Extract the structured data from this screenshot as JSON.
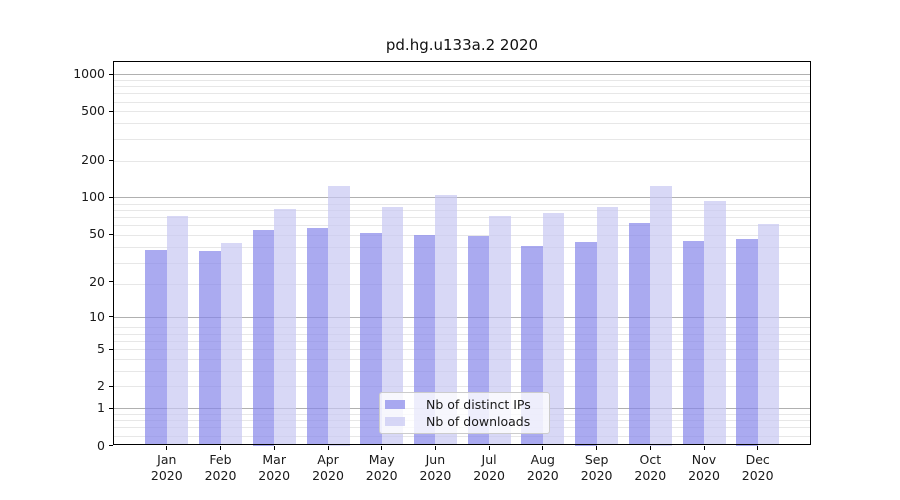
{
  "title": "pd.hg.u133a.2 2020",
  "chart_data": {
    "type": "bar",
    "title": "pd.hg.u133a.2 2020",
    "categories": [
      {
        "month": "Jan",
        "year": "2020"
      },
      {
        "month": "Feb",
        "year": "2020"
      },
      {
        "month": "Mar",
        "year": "2020"
      },
      {
        "month": "Apr",
        "year": "2020"
      },
      {
        "month": "May",
        "year": "2020"
      },
      {
        "month": "Jun",
        "year": "2020"
      },
      {
        "month": "Jul",
        "year": "2020"
      },
      {
        "month": "Aug",
        "year": "2020"
      },
      {
        "month": "Sep",
        "year": "2020"
      },
      {
        "month": "Oct",
        "year": "2020"
      },
      {
        "month": "Nov",
        "year": "2020"
      },
      {
        "month": "Dec",
        "year": "2020"
      }
    ],
    "series": [
      {
        "name": "Nb of distinct IPs",
        "color": "rgba(134,134,234,0.7)",
        "values": [
          37,
          36,
          54,
          56,
          51,
          49,
          48,
          40,
          43,
          62,
          44,
          46
        ]
      },
      {
        "name": "Nb of downloads",
        "color": "rgba(199,199,242,0.7)",
        "values": [
          70,
          42,
          81,
          125,
          84,
          105,
          70,
          74,
          84,
          125,
          93,
          61
        ]
      }
    ],
    "y_scale": "log1p",
    "ylim": [
      0,
      1275
    ],
    "y_ticks": [
      {
        "value": 1000,
        "label": "1000"
      },
      {
        "value": 500,
        "label": "500"
      },
      {
        "value": 200,
        "label": "200"
      },
      {
        "value": 100,
        "label": "100"
      },
      {
        "value": 50,
        "label": "50"
      },
      {
        "value": 20,
        "label": "20"
      },
      {
        "value": 10,
        "label": "10"
      },
      {
        "value": 5,
        "label": "5"
      },
      {
        "value": 2,
        "label": "2"
      },
      {
        "value": 1,
        "label": "1"
      },
      {
        "value": 0,
        "label": "0"
      }
    ],
    "y_major_gridlines": [
      1,
      10,
      100,
      1000
    ],
    "y_minor_gridlines": [
      0.2,
      0.4,
      0.6,
      0.8,
      2,
      3,
      4,
      5,
      6,
      7,
      8,
      19,
      29,
      39,
      49,
      59,
      69,
      79,
      89,
      199,
      299,
      399,
      499,
      599,
      699,
      799,
      899
    ],
    "grid": true,
    "legend_position": "lower center",
    "colors": {
      "major_grid": "#b0b0b0",
      "minor_grid": "#e7e7e7",
      "spine": "#000000",
      "text": "#1a1a1a",
      "legend_border": "#cccccc",
      "legend_bg": "rgba(255,255,255,0.8)"
    }
  }
}
